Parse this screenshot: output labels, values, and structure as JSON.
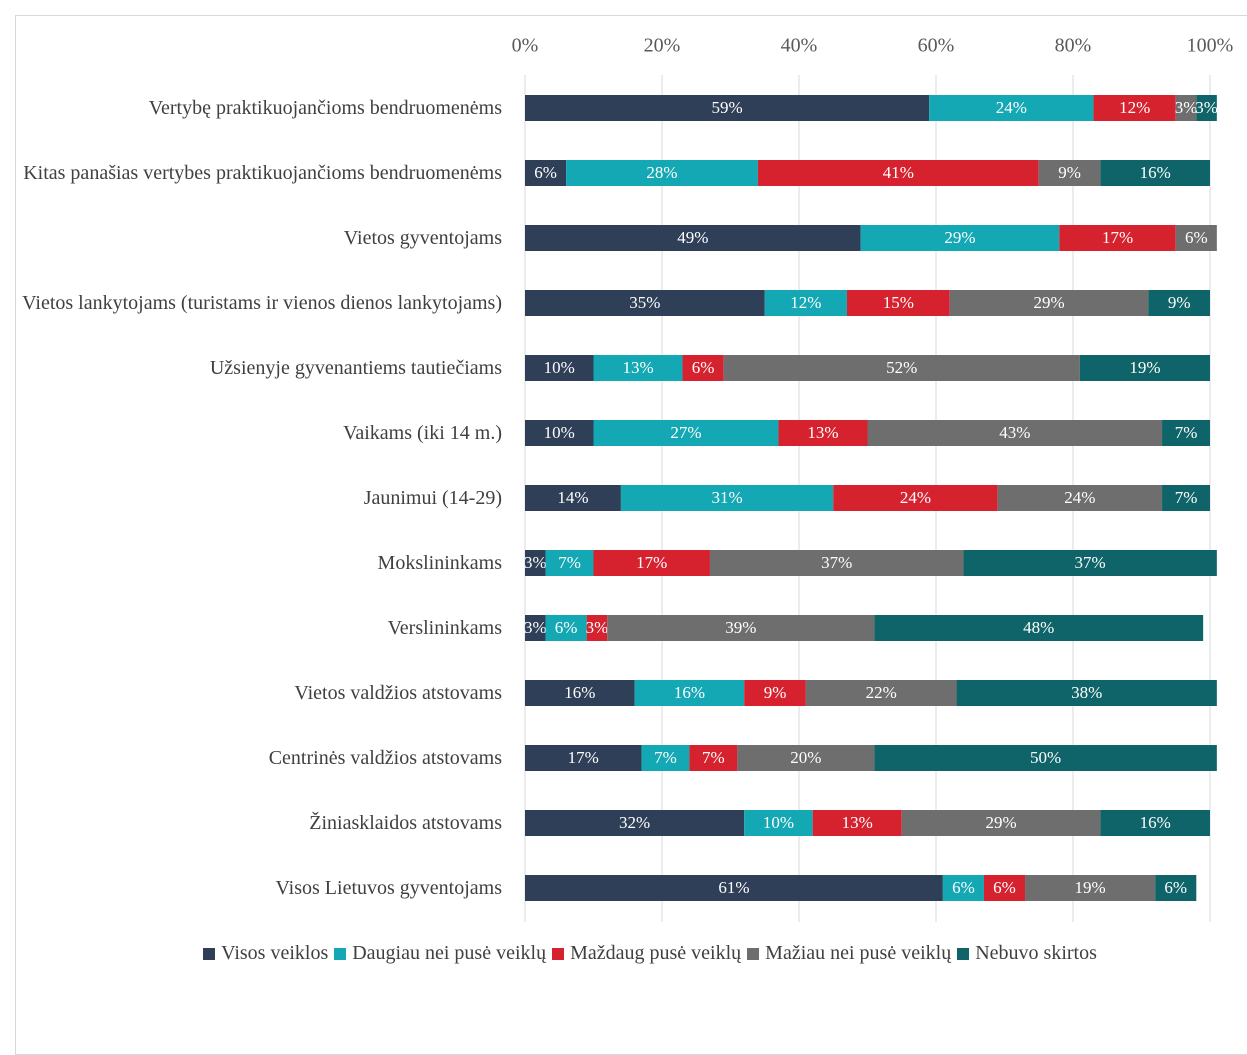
{
  "chart_data": {
    "type": "stacked_barh",
    "categories": [
      "Vertybę praktikuojančioms bendruomenėms",
      "Kitas panašias vertybes praktikuojančioms bendruomenėms",
      "Vietos gyventojams",
      "Vietos lankytojams (turistams ir vienos dienos lankytojams)",
      "Užsienyje gyvenantiems tautiečiams",
      "Vaikams (iki 14 m.)",
      "Jaunimui (14-29)",
      "Mokslininkams",
      "Verslininkams",
      "Vietos valdžios atstovams",
      "Centrinės valdžios atstovams",
      "Žiniasklaidos atstovams",
      "Visos Lietuvos gyventojams"
    ],
    "series": [
      {
        "name": "Visos veiklos",
        "color": "#2e3f57",
        "values": [
          59,
          6,
          49,
          35,
          10,
          10,
          14,
          3,
          3,
          16,
          17,
          32,
          61
        ],
        "value_labels": [
          "59%",
          "6%",
          "49%",
          "35%",
          "10%",
          "10%",
          "14%",
          "3%",
          "3%",
          "16%",
          "17%",
          "32%",
          "61%"
        ]
      },
      {
        "name": "Daugiau nei pusė veiklų",
        "color": "#14a7b4",
        "values": [
          24,
          28,
          29,
          12,
          13,
          27,
          31,
          7,
          6,
          16,
          7,
          10,
          6
        ],
        "value_labels": [
          "24%",
          "28%",
          "29%",
          "12%",
          "13%",
          "27%",
          "31%",
          "7%",
          "6%",
          "16%",
          "7%",
          "10%",
          "6%"
        ]
      },
      {
        "name": "Maždaug pusė veiklų",
        "color": "#d6222e",
        "values": [
          12,
          41,
          17,
          15,
          6,
          13,
          24,
          17,
          3,
          9,
          7,
          13,
          6
        ],
        "value_labels": [
          "12%",
          "41%",
          "17%",
          "15%",
          "6%",
          "13%",
          "24%",
          "17%",
          "3%",
          "9%",
          "7%",
          "13%",
          "6%"
        ]
      },
      {
        "name": "Mažiau nei pusė veiklų",
        "color": "#6e6e6e",
        "values": [
          3,
          9,
          6,
          29,
          52,
          43,
          24,
          37,
          39,
          22,
          20,
          29,
          19
        ],
        "value_labels": [
          "3%",
          "9%",
          "6%",
          "29%",
          "52%",
          "43%",
          "24%",
          "37%",
          "39%",
          "22%",
          "20%",
          "29%",
          "19%"
        ]
      },
      {
        "name": "Nebuvo skirtos",
        "color": "#0e6468",
        "values": [
          3,
          16,
          0,
          9,
          19,
          7,
          7,
          37,
          48,
          38,
          50,
          16,
          6
        ],
        "value_labels": [
          "3%",
          "16%",
          null,
          "9%",
          "19%",
          "7%",
          "7%",
          "37%",
          "48%",
          "38%",
          "50%",
          "16%",
          "6%"
        ]
      }
    ],
    "xlim": [
      0,
      100
    ],
    "xticks": [
      {
        "value": 0,
        "label": "0%"
      },
      {
        "value": 20,
        "label": "20%"
      },
      {
        "value": 40,
        "label": "40%"
      },
      {
        "value": 60,
        "label": "60%"
      },
      {
        "value": 80,
        "label": "80%"
      },
      {
        "value": 100,
        "label": "100%"
      }
    ],
    "grid": true,
    "legend": "bottom"
  }
}
